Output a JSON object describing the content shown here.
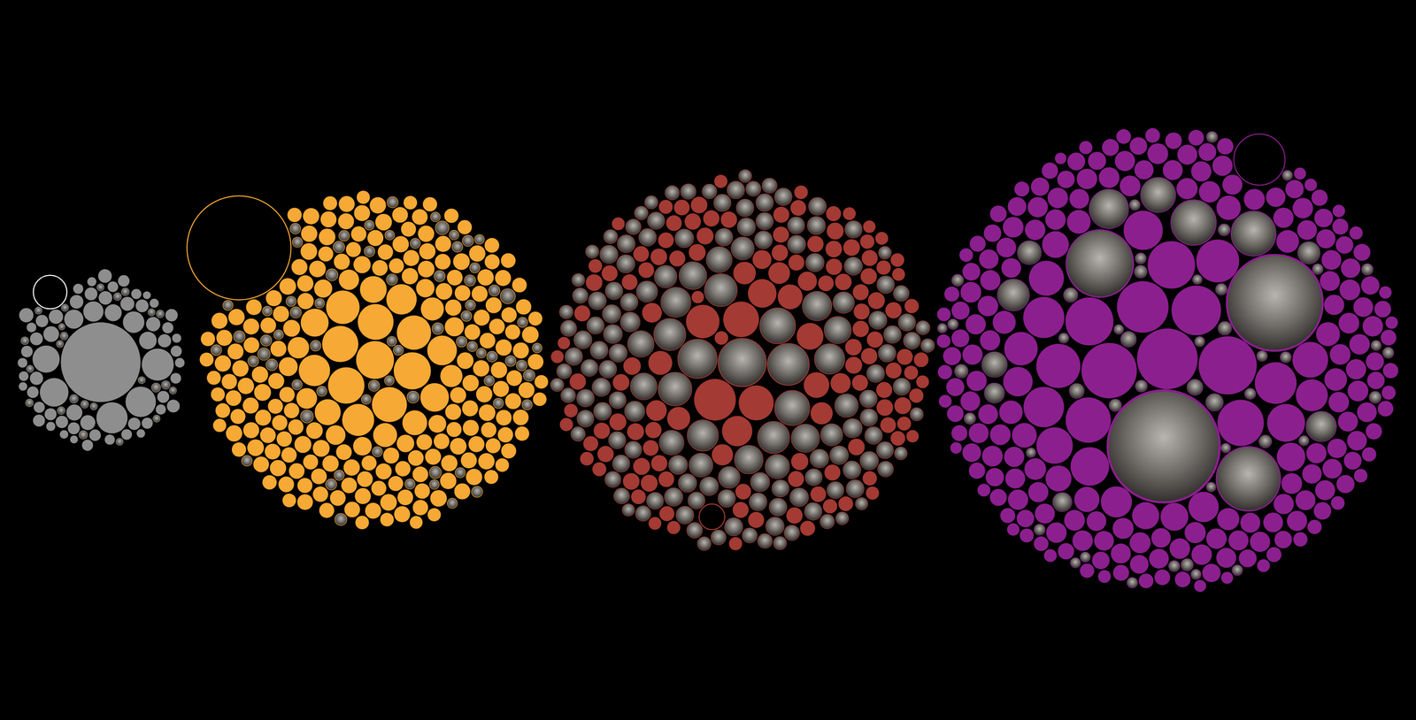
{
  "chart_data": [
    {
      "type": "packed_bubble",
      "series": [
        {
          "color": "#8e8e8e",
          "marker": "circle",
          "values": [
            620,
            100,
            95,
            90,
            80,
            72,
            45,
            40,
            36,
            30,
            28,
            25,
            24,
            22,
            20,
            20,
            19,
            18,
            18,
            17,
            17,
            16,
            16,
            16,
            15,
            15,
            15,
            14,
            14,
            14,
            13,
            13,
            13,
            12,
            12,
            12,
            12,
            11,
            11,
            11,
            10,
            10,
            10,
            10,
            9,
            9,
            9,
            9,
            8,
            8,
            8,
            8,
            7,
            7,
            7,
            6,
            6,
            16,
            15,
            14,
            13,
            12,
            18,
            20
          ]
        },
        {
          "color": "#8e8e8e",
          "marker": "photo",
          "values": [
            7,
            6,
            6,
            5,
            5,
            5,
            8,
            6,
            5,
            7,
            6,
            5,
            5,
            6,
            7,
            5,
            6,
            5,
            6,
            5,
            4,
            5,
            6,
            5
          ]
        },
        {
          "color": "#ffffff",
          "marker": "ring",
          "values": [
            110
          ]
        }
      ]
    },
    {
      "type": "packed_bubble",
      "series": [
        {
          "color": "#f6a934",
          "marker": "circle",
          "values": [
            140,
            135,
            130,
            128,
            125,
            120,
            115,
            110,
            100,
            96,
            90,
            86,
            80,
            76,
            70,
            66,
            60,
            56,
            52,
            48,
            45,
            42,
            40,
            38,
            36,
            35,
            34,
            33,
            32,
            31,
            30,
            28,
            27,
            26,
            25,
            26,
            24,
            27,
            25,
            23,
            26,
            29,
            24,
            25,
            22,
            27,
            25,
            24,
            26,
            23,
            25,
            24,
            28,
            22,
            26,
            25,
            23,
            27,
            24,
            25,
            22,
            26,
            24,
            25,
            27,
            23,
            25,
            26,
            24,
            22,
            28,
            25,
            23,
            26,
            24,
            25,
            27,
            22,
            26,
            24,
            25,
            23,
            26,
            24,
            28,
            25,
            22,
            26,
            25,
            24,
            24,
            27,
            25,
            23,
            26,
            22,
            25,
            24,
            27,
            25,
            26,
            24,
            22,
            25,
            27,
            24,
            26,
            23,
            25,
            24,
            23,
            25,
            26,
            24,
            22,
            27,
            25,
            24,
            26,
            25,
            27,
            24,
            25,
            23,
            26,
            25,
            22,
            24,
            26,
            25,
            25,
            26,
            24,
            27,
            23,
            25,
            24,
            22,
            26,
            24,
            24,
            25,
            23,
            26,
            25,
            27,
            24,
            22,
            25,
            26,
            26,
            23,
            25,
            24,
            22,
            26,
            25,
            27,
            24,
            23,
            22,
            25,
            26,
            24,
            25,
            23,
            27,
            24,
            25,
            26,
            25,
            24,
            22,
            26,
            23,
            25,
            26,
            24,
            27,
            25,
            24,
            26,
            25,
            23,
            24,
            22,
            25,
            26,
            24,
            25,
            20,
            18,
            21,
            19,
            22,
            20,
            18,
            19,
            21,
            20,
            19,
            20,
            18,
            21,
            17,
            20,
            19,
            18,
            20,
            21,
            18,
            19,
            20,
            17,
            18,
            16,
            19,
            20,
            18,
            17
          ]
        },
        {
          "color": "#f6a934",
          "marker": "photo",
          "values": [
            12,
            10,
            9,
            14,
            11,
            10,
            13,
            9,
            12,
            10,
            16,
            11,
            9,
            10,
            12,
            14,
            10,
            9,
            11,
            13,
            10,
            12,
            9,
            11,
            15,
            10,
            9,
            12,
            10,
            11,
            13,
            9,
            10,
            11,
            12,
            10,
            14,
            9,
            11,
            10,
            12,
            10,
            11,
            9,
            13,
            10,
            12,
            11,
            9,
            10,
            22,
            18,
            11,
            10,
            9,
            12,
            10,
            11,
            13,
            9,
            10,
            12,
            11,
            9,
            10,
            14,
            10,
            11,
            9,
            12
          ]
        },
        {
          "color": "#f6a934",
          "marker": "ring",
          "values": [
            1056
          ]
        }
      ]
    },
    {
      "type": "packed_bubble",
      "series": [
        {
          "color": "#a33a33",
          "marker": "circle",
          "values": [
            170,
            125,
            120,
            110,
            90,
            80,
            70,
            64,
            60,
            56,
            52,
            50,
            48,
            46,
            44,
            42,
            40,
            38,
            36,
            35,
            30,
            28,
            26,
            27,
            25,
            29,
            24,
            26,
            28,
            25,
            27,
            25,
            26,
            24,
            28,
            26,
            25,
            27,
            24,
            26,
            25,
            28,
            26,
            24,
            27,
            25,
            26,
            28,
            25,
            24,
            26,
            24,
            27,
            25,
            26,
            28,
            24,
            25,
            27,
            26,
            28,
            25,
            24,
            26,
            27,
            25,
            28,
            24,
            26,
            25,
            24,
            26,
            25,
            27,
            24,
            26,
            25,
            28,
            26,
            27,
            25,
            27,
            26,
            24,
            25,
            28,
            26,
            25,
            24,
            27,
            22,
            20,
            21,
            19,
            22,
            20,
            18,
            21,
            20,
            19,
            20,
            22,
            19,
            21,
            18,
            20,
            22,
            19,
            21,
            20,
            18,
            17,
            16,
            18,
            15,
            17,
            16,
            18,
            17,
            16,
            16,
            15,
            17,
            16,
            18,
            15,
            16,
            17,
            15,
            16
          ]
        },
        {
          "color": "#a33a33",
          "marker": "photo",
          "values": [
            225,
            170,
            150,
            125,
            120,
            110,
            105,
            100,
            100,
            95,
            90,
            88,
            85,
            80,
            78,
            75,
            72,
            70,
            68,
            65,
            60,
            58,
            56,
            54,
            52,
            50,
            48,
            46,
            45,
            44,
            40,
            38,
            36,
            35,
            34,
            33,
            32,
            31,
            30,
            36,
            34,
            30,
            32,
            28,
            35,
            30,
            33,
            29,
            31,
            34,
            30,
            32,
            28,
            34,
            30,
            29,
            33,
            31,
            28,
            32,
            33,
            29,
            31,
            30,
            34,
            28,
            32,
            30,
            29,
            31,
            28,
            31,
            30,
            33,
            29,
            32,
            30,
            28,
            31,
            30,
            32,
            30,
            29,
            31,
            28,
            33,
            30,
            32,
            29,
            30,
            29,
            31,
            30,
            28,
            32,
            30,
            31,
            29,
            33,
            28,
            30,
            28,
            31,
            29,
            30,
            32,
            28,
            30,
            31,
            29,
            24,
            22,
            25,
            23,
            22,
            24,
            21,
            23,
            25,
            22,
            23,
            21,
            24,
            22,
            23,
            20,
            22,
            24,
            21,
            23,
            20,
            18,
            16,
            19,
            17,
            20,
            18,
            16,
            19,
            17,
            16,
            18,
            17,
            15,
            16,
            18,
            17,
            16,
            15,
            17
          ]
        },
        {
          "color": "#a33a33",
          "marker": "ring",
          "values": [
            64
          ]
        }
      ]
    },
    {
      "type": "packed_bubble",
      "series": [
        {
          "color": "#8b1f8e",
          "marker": "circle",
          "values": [
            360,
            330,
            300,
            260,
            240,
            225,
            220,
            210,
            200,
            190,
            180,
            170,
            165,
            160,
            150,
            145,
            140,
            130,
            125,
            120,
            110,
            100,
            95,
            90,
            85,
            80,
            76,
            72,
            70,
            66,
            62,
            60,
            58,
            56,
            55,
            54,
            52,
            50,
            50,
            48,
            46,
            44,
            42,
            45,
            40,
            43,
            41,
            44,
            42,
            40,
            38,
            42,
            40,
            37,
            41,
            39,
            43,
            38,
            40,
            42,
            40,
            38,
            41,
            39,
            42,
            37,
            40,
            43,
            39,
            41,
            42,
            40,
            38,
            41,
            39,
            40,
            42,
            38,
            41,
            40,
            36,
            39,
            41,
            38,
            40,
            37,
            42,
            39,
            38,
            40,
            41,
            38,
            40,
            42,
            37,
            39,
            40,
            38,
            41,
            39,
            39,
            41,
            38,
            40,
            36,
            42,
            38,
            40,
            39,
            41,
            38,
            40,
            42,
            39,
            41,
            38,
            37,
            40,
            42,
            39,
            40,
            37,
            39,
            41,
            38,
            40,
            42,
            39,
            38,
            41,
            32,
            30,
            34,
            31,
            33,
            30,
            32,
            34,
            31,
            30,
            33,
            31,
            30,
            32,
            34,
            30,
            31,
            33,
            32,
            30,
            30,
            32,
            31,
            33,
            30,
            34,
            31,
            30,
            32,
            33,
            28,
            26,
            27,
            25,
            28,
            26,
            24,
            27,
            25,
            26,
            26,
            25,
            27,
            24,
            26,
            28,
            25,
            26,
            27,
            24,
            24,
            22,
            20,
            23,
            21,
            22,
            24,
            20,
            22,
            21,
            20,
            18,
            21,
            19,
            20,
            22,
            18,
            19,
            21,
            20,
            18,
            16,
            17,
            15,
            18,
            16,
            17,
            15,
            16,
            18,
            14,
            16,
            15,
            13,
            14,
            15,
            16,
            14,
            13,
            15
          ]
        },
        {
          "color": "#8b1f8e",
          "marker": "photo",
          "values": [
            1225,
            900,
            440,
            400,
            200,
            196,
            150,
            120,
            100,
            90,
            64,
            56,
            49,
            40,
            36,
            30,
            25,
            24,
            22,
            20,
            18,
            16,
            15,
            14,
            13,
            12,
            12,
            11,
            10,
            10,
            16,
            14,
            12,
            11,
            10,
            9,
            18,
            15,
            13,
            12,
            11,
            10,
            9,
            14,
            12,
            10,
            9,
            11,
            13,
            10,
            9,
            12,
            10,
            11,
            14,
            9,
            10,
            12,
            11,
            9
          ]
        },
        {
          "color": "#8b1f8e",
          "marker": "ring",
          "values": [
            256
          ]
        }
      ]
    }
  ]
}
